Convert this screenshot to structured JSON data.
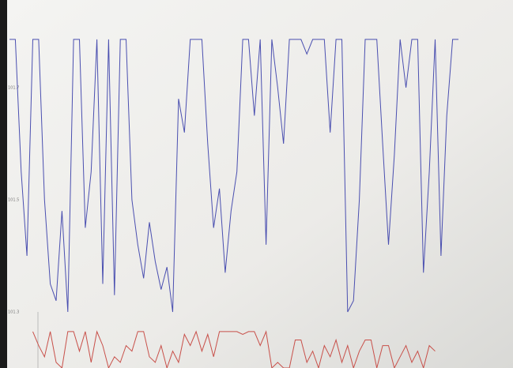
{
  "chart_data": {
    "type": "line",
    "ylim": [
      101.2,
      101.8
    ],
    "yticks": [
      101.3,
      101.5,
      101.7
    ],
    "grid": false,
    "series": [
      {
        "name": null,
        "color": "#4a4fb0",
        "values": [
          101.786,
          101.786,
          101.55,
          101.4,
          101.786,
          101.786,
          101.5,
          101.35,
          101.32,
          101.48,
          101.3,
          101.786,
          101.786,
          101.45,
          101.55,
          101.786,
          101.35,
          101.786,
          101.33,
          101.786,
          101.786,
          101.5,
          101.42,
          101.36,
          101.46,
          101.39,
          101.34,
          101.38,
          101.3,
          101.68,
          101.62,
          101.786,
          101.786,
          101.786,
          101.6,
          101.45,
          101.52,
          101.37,
          101.48,
          101.55,
          101.786,
          101.786,
          101.65,
          101.786,
          101.42,
          101.786,
          101.7,
          101.6,
          101.786,
          101.786,
          101.786,
          101.76,
          101.786,
          101.786,
          101.786,
          101.62,
          101.786,
          101.786,
          101.3,
          101.32,
          101.5,
          101.786,
          101.786,
          101.786,
          101.6,
          101.42,
          101.58,
          101.786,
          101.7,
          101.786,
          101.786,
          101.37,
          101.55,
          101.786,
          101.4,
          101.65,
          101.786,
          101.786
        ]
      },
      {
        "name": null,
        "color": "#c8504a",
        "values": [
          null,
          null,
          null,
          null,
          101.265,
          101.24,
          101.22,
          101.265,
          101.21,
          101.2,
          101.265,
          101.265,
          101.23,
          101.265,
          101.21,
          101.265,
          101.24,
          101.2,
          101.22,
          101.21,
          101.24,
          101.23,
          101.265,
          101.265,
          101.22,
          101.21,
          101.24,
          101.2,
          101.23,
          101.21,
          101.26,
          101.24,
          101.265,
          101.23,
          101.26,
          101.22,
          101.265,
          101.265,
          101.265,
          101.265,
          101.26,
          101.265,
          101.265,
          101.24,
          101.265,
          101.2,
          101.21,
          101.2,
          101.2,
          101.25,
          101.25,
          101.21,
          101.23,
          101.2,
          101.24,
          101.22,
          101.25,
          101.21,
          101.24,
          101.2,
          101.23,
          101.25,
          101.25,
          101.2,
          101.24,
          101.24,
          101.2,
          101.22,
          101.24,
          101.21,
          101.23,
          101.2,
          101.24,
          101.23,
          null,
          null,
          null,
          null
        ]
      }
    ]
  }
}
